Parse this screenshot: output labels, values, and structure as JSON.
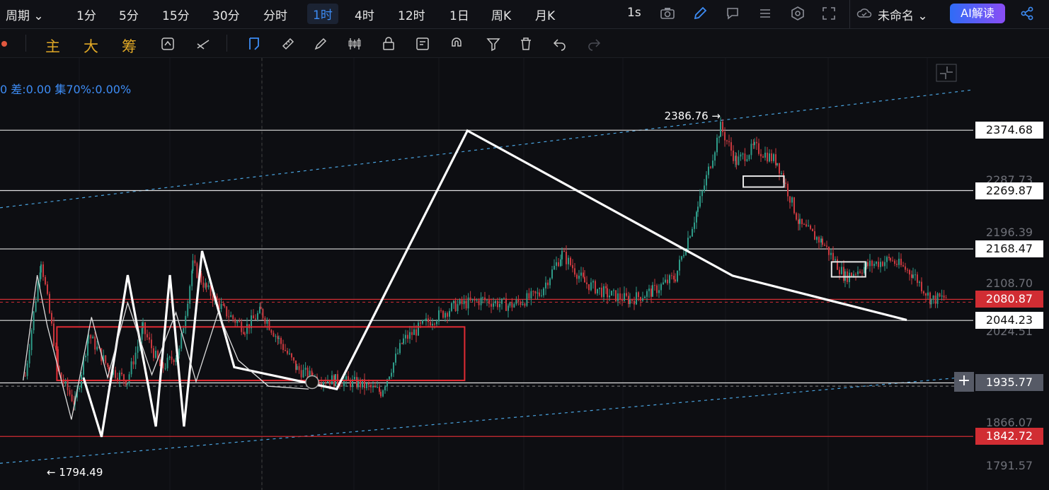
{
  "topbar": {
    "period_label": "周期",
    "timeframes": [
      "1分",
      "5分",
      "15分",
      "30分",
      "分时",
      "1时",
      "4时",
      "12时",
      "1日",
      "周K",
      "月K"
    ],
    "active_timeframe": "1时",
    "refresh_label": "1s",
    "layout_name": "未命名",
    "ai_label": "AI解读"
  },
  "toolbar2": {
    "chip_labels": [
      "主",
      "大",
      "筹"
    ]
  },
  "stats": {
    "text": "0 差:0.00 集70%:0.00%"
  },
  "chart_data": {
    "type": "candlestick",
    "ylim": [
      1780,
      2460
    ],
    "y_ticks": [
      "2287.73",
      "2196.39",
      "2108.70",
      "2024.51",
      "1866.07",
      "1791.57"
    ],
    "extremes": {
      "high": "2386.76",
      "low": "1794.49",
      "high_arrow": "2386.76 →",
      "low_arrow": "← 1794.49"
    },
    "horizontal_levels": [
      {
        "price": 2374.68,
        "label": "2374.68",
        "style": "white"
      },
      {
        "price": 2269.87,
        "label": "2269.87",
        "style": "white"
      },
      {
        "price": 2168.47,
        "label": "2168.47",
        "style": "white"
      },
      {
        "price": 2080.87,
        "label": "2080.87",
        "style": "red"
      },
      {
        "price": 2044.23,
        "label": "2044.23",
        "style": "white"
      },
      {
        "price": 1935.77,
        "label": "1935.77",
        "style": "gray"
      },
      {
        "price": 1842.72,
        "label": "1842.72",
        "style": "red"
      }
    ],
    "path_points": [
      [
        0.08,
        1948
      ],
      [
        0.15,
        2150
      ],
      [
        0.23,
        1950
      ],
      [
        0.3,
        1900
      ],
      [
        0.36,
        2020
      ],
      [
        0.45,
        1960
      ],
      [
        0.53,
        1940
      ],
      [
        0.6,
        2030
      ],
      [
        0.68,
        1960
      ],
      [
        0.76,
        1990
      ],
      [
        0.82,
        2140
      ],
      [
        0.88,
        2100
      ],
      [
        0.96,
        2060
      ],
      [
        1.05,
        2030
      ],
      [
        1.12,
        2060
      ],
      [
        1.2,
        2010
      ],
      [
        1.28,
        1960
      ],
      [
        1.35,
        1945
      ],
      [
        1.45,
        1940
      ],
      [
        1.55,
        1935
      ],
      [
        1.65,
        1920
      ],
      [
        1.75,
        2010
      ],
      [
        1.85,
        2040
      ],
      [
        1.98,
        2070
      ],
      [
        2.1,
        2080
      ],
      [
        2.22,
        2070
      ],
      [
        2.35,
        2090
      ],
      [
        2.45,
        2160
      ],
      [
        2.55,
        2110
      ],
      [
        2.65,
        2090
      ],
      [
        2.75,
        2080
      ],
      [
        2.85,
        2095
      ],
      [
        2.95,
        2120
      ],
      [
        3.05,
        2240
      ],
      [
        3.15,
        2380
      ],
      [
        3.22,
        2320
      ],
      [
        3.3,
        2345
      ],
      [
        3.4,
        2320
      ],
      [
        3.5,
        2210
      ],
      [
        3.6,
        2180
      ],
      [
        3.7,
        2120
      ],
      [
        3.8,
        2140
      ],
      [
        3.9,
        2150
      ],
      [
        4.0,
        2125
      ],
      [
        4.08,
        2080
      ],
      [
        4.15,
        2085
      ]
    ],
    "zigzag_thick": [
      [
        0.38,
        1945
      ],
      [
        0.47,
        1842
      ],
      [
        0.6,
        2123
      ],
      [
        0.74,
        1860
      ],
      [
        0.81,
        2123
      ],
      [
        0.88,
        1860
      ],
      [
        0.97,
        2165
      ],
      [
        1.13,
        1963
      ],
      [
        1.64,
        1925
      ],
      [
        2.29,
        2374
      ],
      [
        2.64,
        2122
      ],
      [
        2.87,
        2045
      ]
    ],
    "zigzag_thin": [
      [
        0.08,
        1940
      ],
      [
        0.15,
        2123
      ],
      [
        0.2,
        2035
      ],
      [
        0.32,
        1872
      ],
      [
        0.42,
        2050
      ],
      [
        0.5,
        1945
      ],
      [
        0.6,
        2075
      ],
      [
        0.72,
        1950
      ],
      [
        0.84,
        2058
      ],
      [
        0.94,
        1938
      ],
      [
        1.05,
        2058
      ],
      [
        1.15,
        1975
      ],
      [
        1.3,
        1930
      ],
      [
        1.5,
        1925
      ]
    ],
    "boxes": [
      {
        "color": "red",
        "p_top": 2033,
        "p_bot": 1940
      },
      {
        "color": "white",
        "p_top": 2295,
        "p_bot": 2276
      },
      {
        "color": "white",
        "p_top": 2146,
        "p_bot": 2120
      }
    ]
  },
  "colors": {
    "bg": "#0d0e12",
    "up": "#2e9b88",
    "down": "#c9393f",
    "accent": "#3d8cf5",
    "level_red": "#d12d33"
  }
}
